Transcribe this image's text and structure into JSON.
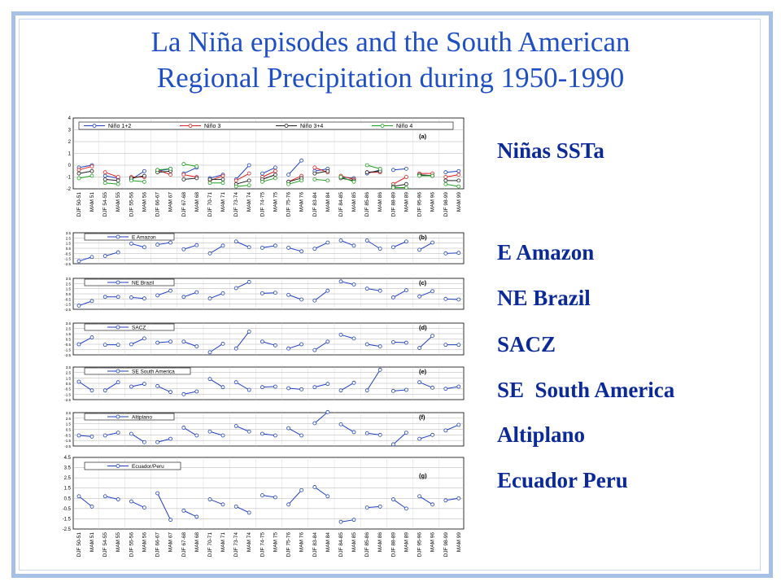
{
  "title": {
    "line1": "La Niña episodes and the South American",
    "line2": "Regional Precipitation during 1950-1990"
  },
  "labels": [
    "Niñas SSTa",
    "E Amazon",
    "NE Brazil",
    "SACZ",
    "SE  South America",
    "Altiplano",
    "Ecuador Peru"
  ],
  "colors": {
    "title": "#1f4fc4",
    "labels": "#0b2a98",
    "frame": "#a7c0e6",
    "series_blue": "#1f3fc0",
    "nino3": "#e02020",
    "nino34": "#202020",
    "nino4": "#20a020"
  },
  "chart_data": [
    {
      "type": "line",
      "panel": "(a)",
      "ylim": [
        -2,
        4
      ],
      "yticks": [
        "4",
        "3",
        "2",
        "1",
        "0",
        "-1",
        "-2"
      ],
      "categories": [
        "DJF 50-51",
        "MAM 51",
        "DJF 54-55",
        "MAM 55",
        "DJF 55-56",
        "MAM 56",
        "DJF 66-67",
        "MAM 67",
        "DJF 67-68",
        "MAM 68",
        "DJF 70-71",
        "MAM 71",
        "DJF 73-74",
        "MAM 74",
        "DJF 74-75",
        "MAM 75",
        "DJF 75-76",
        "MAM 76",
        "DJF 83-84",
        "MAM 84",
        "DJF 84-85",
        "MAM 85",
        "DJF 85-86",
        "MAM 86",
        "DJF 88-89",
        "MAM 89",
        "DJF 95-96",
        "MAM 96",
        "DJF 98-99",
        "MAM 99"
      ],
      "series": [
        {
          "name": "Niño 1+2",
          "color": "#1f3fc0",
          "values": [
            -0.2,
            0.0,
            -0.9,
            -1.1,
            -1.2,
            -0.5,
            -0.5,
            -0.3,
            -0.7,
            -0.2,
            -1.1,
            -0.8,
            -1.2,
            0.0,
            -0.7,
            -0.2,
            -0.8,
            0.4,
            -0.5,
            -0.3,
            -1.0,
            -1.1,
            -0.7,
            -0.4,
            -0.4,
            -0.3,
            -0.8,
            -0.9,
            -0.6,
            -0.5
          ]
        },
        {
          "name": "Niño 3",
          "color": "#e02020",
          "values": [
            -0.4,
            -0.1,
            -0.6,
            -1.0,
            -1.0,
            -1.0,
            -0.4,
            -0.8,
            -0.8,
            -1.0,
            -1.3,
            -0.9,
            -1.3,
            -0.7,
            -1.0,
            -0.5,
            -1.4,
            -0.9,
            -0.2,
            -0.6,
            -0.9,
            -1.2,
            -0.6,
            -0.6,
            -1.6,
            -1.0,
            -0.7,
            -0.7,
            -1.0,
            -0.8
          ]
        },
        {
          "name": "Niño 3+4",
          "color": "#202020",
          "values": [
            -0.7,
            -0.5,
            -1.2,
            -1.3,
            -1.1,
            -0.9,
            -0.6,
            -0.5,
            -1.2,
            -1.1,
            -1.2,
            -1.2,
            -1.6,
            -1.3,
            -1.2,
            -0.8,
            -1.4,
            -1.1,
            -0.7,
            -0.5,
            -1.1,
            -1.3,
            -0.6,
            -0.5,
            -1.8,
            -1.6,
            -0.8,
            -0.9,
            -1.3,
            -1.3
          ]
        },
        {
          "name": "Niño 4",
          "color": "#20a020",
          "values": [
            -1.1,
            -0.9,
            -1.5,
            -1.6,
            -1.3,
            -1.4,
            -0.4,
            -0.3,
            0.1,
            -0.1,
            -1.5,
            -1.5,
            -1.8,
            -1.7,
            -1.4,
            -1.1,
            -1.6,
            -1.3,
            -1.2,
            -1.3,
            -1.0,
            -1.4,
            0.0,
            -0.3,
            -1.9,
            -1.9,
            -0.9,
            -0.9,
            -1.6,
            -1.8
          ]
        }
      ]
    },
    {
      "type": "line",
      "panel": "(b)",
      "ylim": [
        -2.5,
        3.5
      ],
      "yticks": [
        "3.5",
        "2.5",
        "1.5",
        "0.5",
        "-0.5",
        "-1.5",
        "-2.5"
      ],
      "series": [
        {
          "name": "E Amazon",
          "values": [
            -2.0,
            -1.2,
            -1.0,
            -0.3,
            1.4,
            0.7,
            1.2,
            1.6,
            0.3,
            1.1,
            -0.5,
            1.0,
            1.8,
            0.7,
            0.6,
            1.0,
            0.6,
            -0.1,
            0.4,
            1.6,
            2.0,
            1.0,
            2.0,
            0.4,
            0.7,
            1.8,
            0.2,
            1.6,
            -0.5,
            -0.4
          ]
        }
      ]
    },
    {
      "type": "line",
      "panel": "(c)",
      "ylim": [
        -2.5,
        3.5
      ],
      "yticks": [
        "3.5",
        "2.5",
        "1.5",
        "0.5",
        "-0.5",
        "-1.5",
        "-2.5"
      ],
      "series": [
        {
          "name": "NE Brazil",
          "values": [
            -1.8,
            -0.9,
            -0.1,
            -0.1,
            -0.2,
            -0.4,
            0.2,
            1.1,
            -0.1,
            0.8,
            -0.4,
            0.6,
            1.6,
            2.8,
            0.6,
            0.7,
            0.3,
            -0.6,
            -0.8,
            1.1,
            2.9,
            2.3,
            1.5,
            1.1,
            -0.2,
            1.2,
            0.0,
            1.0,
            -0.5,
            -0.6
          ]
        }
      ]
    },
    {
      "type": "line",
      "panel": "(d)",
      "ylim": [
        -2.5,
        3.5
      ],
      "yticks": [
        "3.5",
        "2.5",
        "1.5",
        "0.5",
        "-0.5",
        "-1.5",
        "-2.5"
      ],
      "series": [
        {
          "name": "SACZ",
          "values": [
            -0.5,
            0.8,
            -0.6,
            -0.6,
            -0.5,
            0.6,
            -0.2,
            0.0,
            0.0,
            -0.9,
            -2.0,
            -0.4,
            -1.3,
            1.9,
            0.0,
            -0.7,
            -1.3,
            -0.5,
            -1.6,
            0.0,
            1.3,
            0.6,
            -0.5,
            -0.9,
            -0.1,
            -0.2,
            -1.2,
            1.1,
            -0.6,
            -0.6
          ]
        }
      ]
    },
    {
      "type": "line",
      "panel": "(e)",
      "ylim": [
        -2.5,
        3.5
      ],
      "yticks": [
        "3.5",
        "2.5",
        "1.5",
        "0.5",
        "-0.5",
        "-1.5",
        "-2.5"
      ],
      "series": [
        {
          "name": "SE South America",
          "values": [
            0.8,
            -0.8,
            -0.8,
            0.7,
            -0.1,
            0.4,
            0.0,
            -1.1,
            -1.5,
            -1.0,
            1.3,
            -0.2,
            0.7,
            -0.7,
            -0.2,
            -0.1,
            -0.4,
            -0.6,
            -0.2,
            0.4,
            -0.8,
            0.6,
            -0.8,
            3.0,
            -0.9,
            -0.7,
            0.7,
            -0.3,
            -0.5,
            -0.1
          ]
        }
      ]
    },
    {
      "type": "line",
      "panel": "(f)",
      "ylim": [
        -2.5,
        3.5
      ],
      "yticks": [
        "3.5",
        "2.5",
        "1.5",
        "0.5",
        "-0.5",
        "-1.5",
        "-2.5"
      ],
      "series": [
        {
          "name": "Altiplano",
          "values": [
            -0.6,
            -0.8,
            -0.6,
            -0.1,
            -0.3,
            -1.8,
            -1.8,
            -1.2,
            0.8,
            -0.6,
            0.1,
            -0.6,
            1.1,
            0.1,
            -0.3,
            -0.6,
            0.7,
            -0.6,
            1.6,
            3.6,
            1.4,
            0.0,
            -0.2,
            -0.5,
            -2.2,
            -0.1,
            -1.2,
            -0.5,
            0.3,
            1.3
          ]
        }
      ]
    },
    {
      "type": "line",
      "panel": "(g)",
      "ylim": [
        -2.5,
        4.5
      ],
      "yticks": [
        "4.5",
        "3.5",
        "2.5",
        "1.5",
        "0.5",
        "-0.5",
        "-1.5",
        "-2.5"
      ],
      "xticks": [
        "DJF 50-51",
        "MAM 51",
        "DJF 54-55",
        "MAM 55",
        "DJF 55-56",
        "MAM 56",
        "DJF 66-67",
        "MAM 67",
        "DJF 67-68",
        "MAM 68",
        "DJF 70-71",
        "MAM 71",
        "DJF 73-74",
        "MAM 74",
        "DJF 74-75",
        "MAM 75",
        "DJF 75-76",
        "MAM 76",
        "DJF 83-84",
        "MAM 84",
        "DJF 84-85",
        "MAM 85",
        "DJF 85-86",
        "MAM 86",
        "DJF 88-89",
        "MAM 89",
        "DJF 95-96",
        "MAM 96",
        "DJF 98-99",
        "MAM 99"
      ],
      "series": [
        {
          "name": "Ecuador/Peru",
          "values": [
            0.7,
            -0.3,
            0.7,
            0.4,
            0.2,
            -0.4,
            1.0,
            -1.6,
            -0.7,
            -1.3,
            0.4,
            -0.1,
            -0.3,
            -0.9,
            0.8,
            0.6,
            -0.1,
            1.3,
            1.6,
            0.7,
            -1.8,
            -1.6,
            -0.4,
            -0.3,
            0.4,
            -0.5,
            0.7,
            -0.1,
            0.3,
            0.5
          ]
        }
      ]
    }
  ]
}
